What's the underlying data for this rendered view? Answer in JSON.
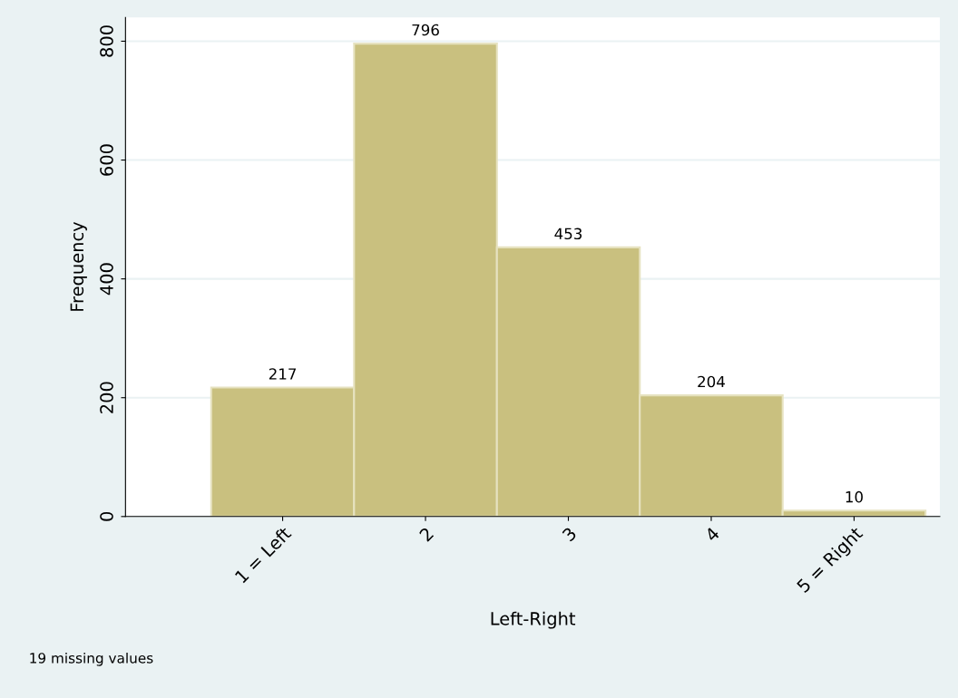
{
  "chart_data": {
    "type": "histogram",
    "xlabel": "Left-Right",
    "ylabel": "Frequency",
    "bins": [
      0.5,
      1.5,
      2.5,
      3.5,
      4.5,
      5.5
    ],
    "values": [
      217,
      796,
      453,
      204,
      10
    ],
    "color": "#c9c07f",
    "data_labels": true,
    "xlim": [
      -0.1,
      5.6
    ],
    "xticks": [
      {
        "value": 1,
        "label": "1 = Left"
      },
      {
        "value": 2,
        "label": "2"
      },
      {
        "value": 3,
        "label": "3"
      },
      {
        "value": 4,
        "label": "4"
      },
      {
        "value": 5,
        "label": "5 = Right"
      }
    ],
    "ylim": [
      0,
      840
    ],
    "yticks": [
      0,
      200,
      400,
      600,
      800
    ],
    "grid": "y",
    "annotations": [
      "19 missing values"
    ]
  }
}
